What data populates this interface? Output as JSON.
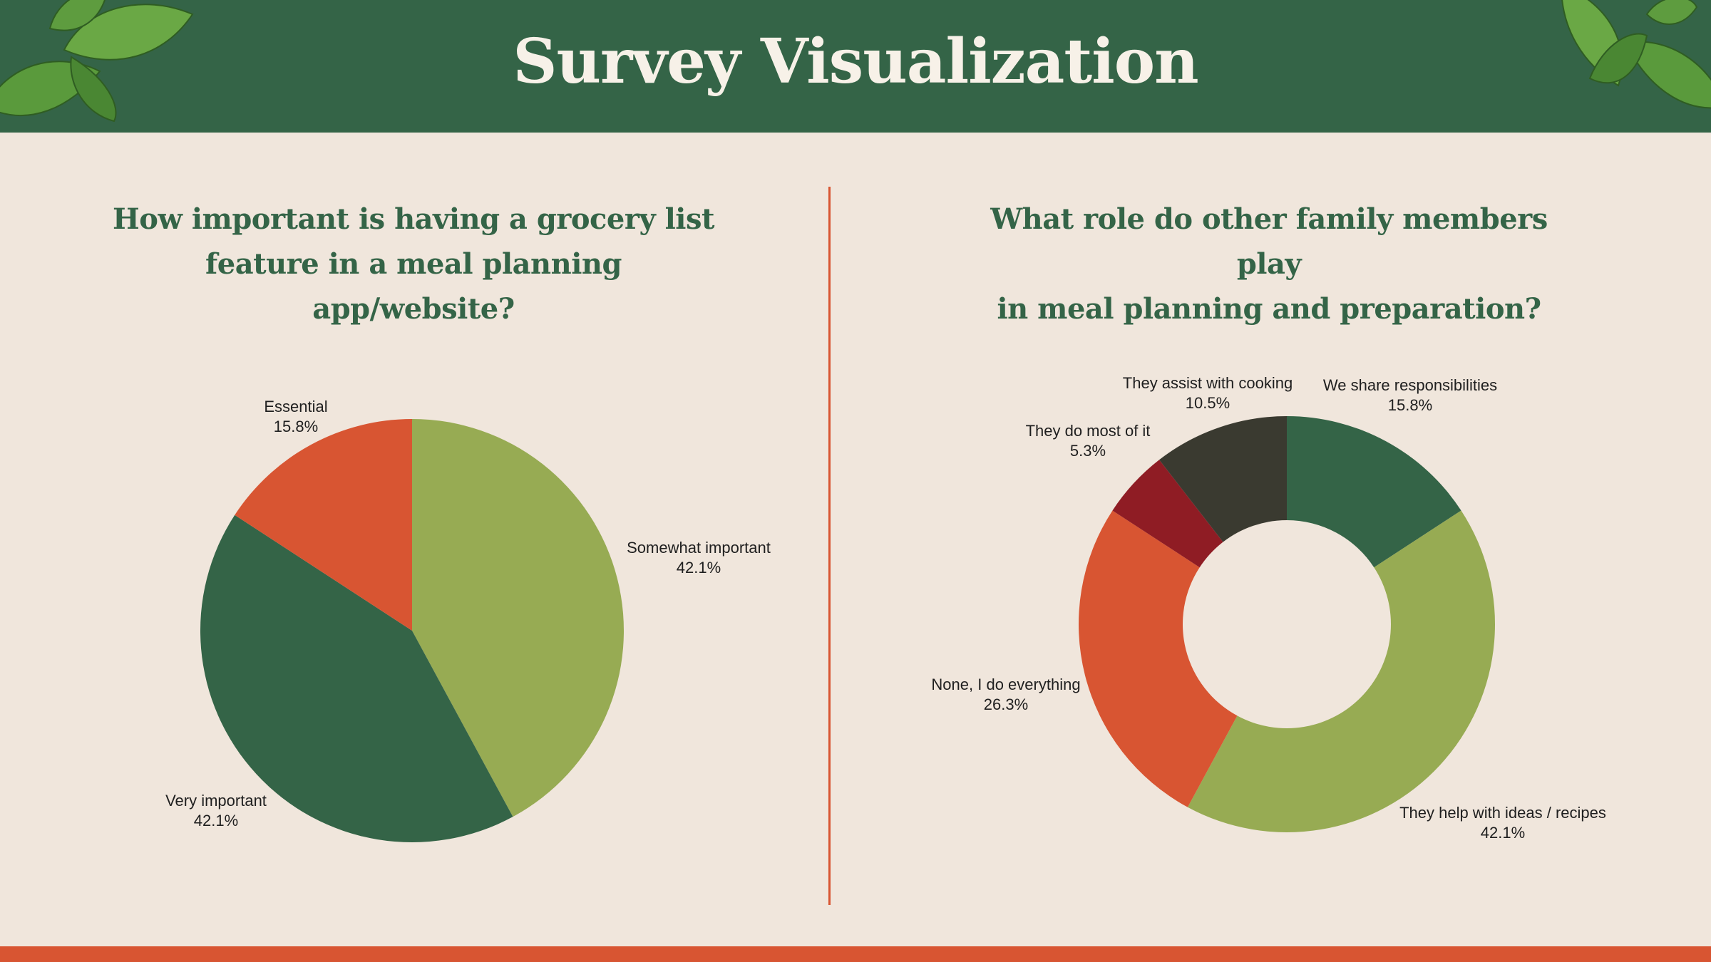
{
  "page": {
    "title": "Survey Visualization"
  },
  "chart_data": [
    {
      "type": "pie",
      "title": "How important is having a grocery list feature in a meal planning app/website?",
      "title_lines": [
        "How important is having a grocery list",
        "feature in a meal planning app/website?"
      ],
      "slices": [
        {
          "label": "Somewhat important",
          "value": 42.1,
          "display": "42.1%",
          "color": "#97ab53"
        },
        {
          "label": "Very important",
          "value": 42.1,
          "display": "42.1%",
          "color": "#346447"
        },
        {
          "label": "Essential",
          "value": 15.8,
          "display": "15.8%",
          "color": "#d85532"
        }
      ]
    },
    {
      "type": "donut",
      "title": "What role do other family members play in meal planning and preparation?",
      "title_lines": [
        "What role do other family members play",
        "in meal planning and preparation?"
      ],
      "slices": [
        {
          "label": "We share responsibilities",
          "value": 15.8,
          "display": "15.8%",
          "color": "#346447"
        },
        {
          "label": "They help with ideas / recipes",
          "value": 42.1,
          "display": "42.1%",
          "color": "#97ab53"
        },
        {
          "label": "None, I do everything",
          "value": 26.3,
          "display": "26.3%",
          "color": "#d85532"
        },
        {
          "label": "They do most of it",
          "value": 5.3,
          "display": "5.3%",
          "color": "#8f1c24"
        },
        {
          "label": "They assist with cooking",
          "value": 10.5,
          "display": "10.5%",
          "color": "#3a3a30"
        }
      ]
    }
  ]
}
